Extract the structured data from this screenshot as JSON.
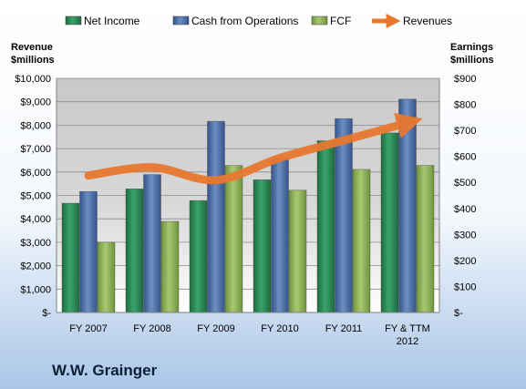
{
  "chart_data": {
    "type": "bar",
    "company": "W.W. Grainger",
    "categories": [
      "FY 2007",
      "FY 2008",
      "FY 2009",
      "FY 2010",
      "FY 2011",
      [
        "FY & TTM",
        "2012"
      ]
    ],
    "series": [
      {
        "name": "Net Income",
        "axis": "right",
        "color": "#2e8b57",
        "values": [
          420,
          475,
          430,
          510,
          660,
          690
        ]
      },
      {
        "name": "Cash from Operations",
        "axis": "right",
        "color": "#4a6fa5",
        "values": [
          465,
          530,
          735,
          595,
          745,
          820
        ]
      },
      {
        "name": "FCF",
        "axis": "right",
        "color": "#8fb55a",
        "values": [
          270,
          350,
          565,
          470,
          550,
          565
        ]
      }
    ],
    "line_series": {
      "name": "Revenues",
      "axis": "left",
      "color": "#e8782f",
      "values": [
        5850,
        6200,
        5650,
        6600,
        7350,
        8100
      ]
    },
    "left_axis": {
      "label_line1": "Revenue",
      "label_line2": "$millions",
      "min": 0,
      "max": 10000,
      "step": 1000,
      "ticks": [
        "$-",
        "$1,000",
        "$2,000",
        "$3,000",
        "$4,000",
        "$5,000",
        "$6,000",
        "$7,000",
        "$8,000",
        "$9,000",
        "$10,000"
      ]
    },
    "right_axis": {
      "label_line1": "Earnings",
      "label_line2": "$millions",
      "min": 0,
      "max": 900,
      "step": 100,
      "ticks": [
        "$-",
        "$100",
        "$200",
        "$300",
        "$400",
        "$500",
        "$600",
        "$700",
        "$800",
        "$900"
      ]
    },
    "legend_position": "top",
    "grid": true
  }
}
